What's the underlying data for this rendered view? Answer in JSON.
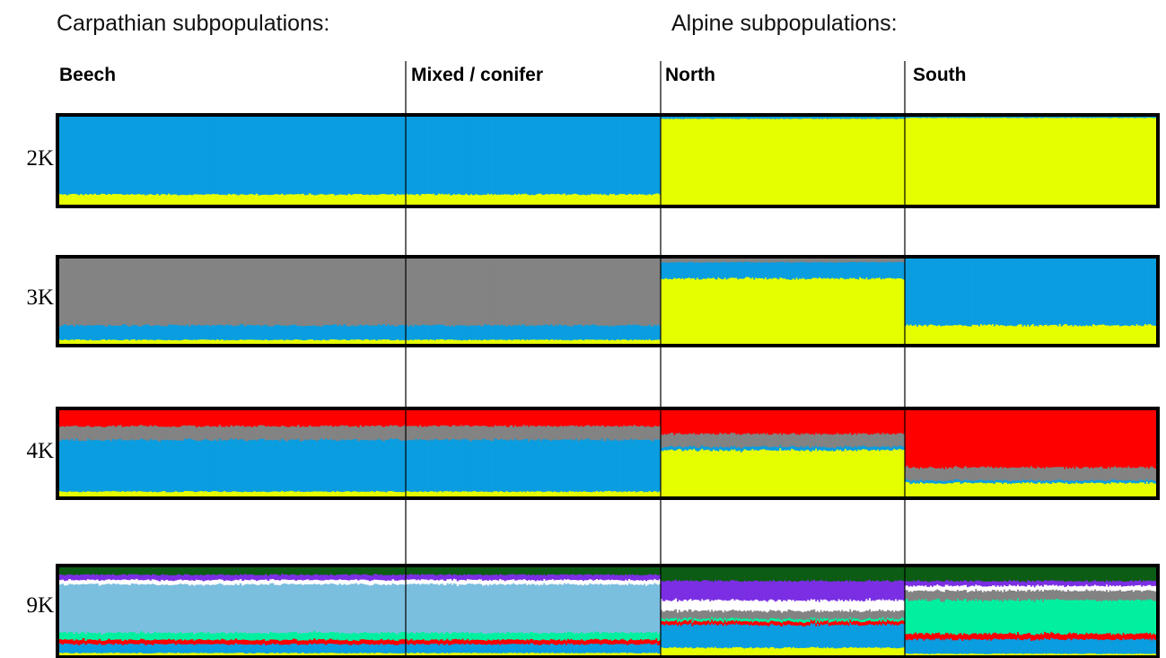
{
  "headings": {
    "carpathian": "Carpathian subpopulations:",
    "alpine": "Alpine subpopulations:"
  },
  "colors": {
    "blue": "#0a9de0",
    "yellow": "#e6ff00",
    "gray": "#838383",
    "red": "#ff0000",
    "darkgreen": "#0c5c14",
    "purple": "#7b2fe3",
    "white": "#ffffff",
    "lightblue": "#7bbfdf",
    "mint": "#00f0a0"
  },
  "chart_data": {
    "type": "bar",
    "stacked": true,
    "orientation": "vertical",
    "y_range": [
      0,
      1
    ],
    "groups": [
      {
        "name": "Beech",
        "region": "Carpathian"
      },
      {
        "name": "Mixed / conifer",
        "region": "Carpathian"
      },
      {
        "name": "North",
        "region": "Alpine"
      },
      {
        "name": "South",
        "region": "Alpine"
      }
    ],
    "panels": [
      {
        "label": "2K",
        "segments": [
          {
            "cluster": "yellow",
            "values": [
              0.12,
              0.12,
              0.98,
              0.99
            ]
          },
          {
            "cluster": "blue",
            "values": [
              0.88,
              0.88,
              0.02,
              0.01
            ]
          }
        ]
      },
      {
        "label": "3K",
        "segments": [
          {
            "cluster": "yellow",
            "values": [
              0.05,
              0.05,
              0.77,
              0.22
            ]
          },
          {
            "cluster": "blue",
            "values": [
              0.17,
              0.17,
              0.19,
              0.78
            ]
          },
          {
            "cluster": "gray",
            "values": [
              0.78,
              0.78,
              0.04,
              0.0
            ]
          }
        ]
      },
      {
        "label": "4K",
        "segments": [
          {
            "cluster": "yellow",
            "values": [
              0.06,
              0.06,
              0.54,
              0.16
            ]
          },
          {
            "cluster": "blue",
            "values": [
              0.6,
              0.6,
              0.04,
              0.03
            ]
          },
          {
            "cluster": "gray",
            "values": [
              0.16,
              0.16,
              0.15,
              0.15
            ]
          },
          {
            "cluster": "red",
            "values": [
              0.18,
              0.18,
              0.27,
              0.66
            ]
          }
        ]
      },
      {
        "label": "9K",
        "segments": [
          {
            "cluster": "yellow",
            "values": [
              0.03,
              0.03,
              0.09,
              0.02
            ]
          },
          {
            "cluster": "blue",
            "values": [
              0.1,
              0.1,
              0.26,
              0.15
            ]
          },
          {
            "cluster": "red",
            "values": [
              0.05,
              0.05,
              0.04,
              0.06
            ]
          },
          {
            "cluster": "mint",
            "values": [
              0.08,
              0.08,
              0.03,
              0.35
            ]
          },
          {
            "cluster": "lightblue",
            "values": [
              0.55,
              0.55,
              0.0,
              0.0
            ]
          },
          {
            "cluster": "gray",
            "values": [
              0.0,
              0.0,
              0.09,
              0.1
            ]
          },
          {
            "cluster": "white",
            "values": [
              0.05,
              0.05,
              0.12,
              0.05
            ]
          },
          {
            "cluster": "purple",
            "values": [
              0.06,
              0.06,
              0.22,
              0.05
            ]
          },
          {
            "cluster": "darkgreen",
            "values": [
              0.08,
              0.08,
              0.15,
              0.14
            ]
          }
        ]
      }
    ]
  }
}
